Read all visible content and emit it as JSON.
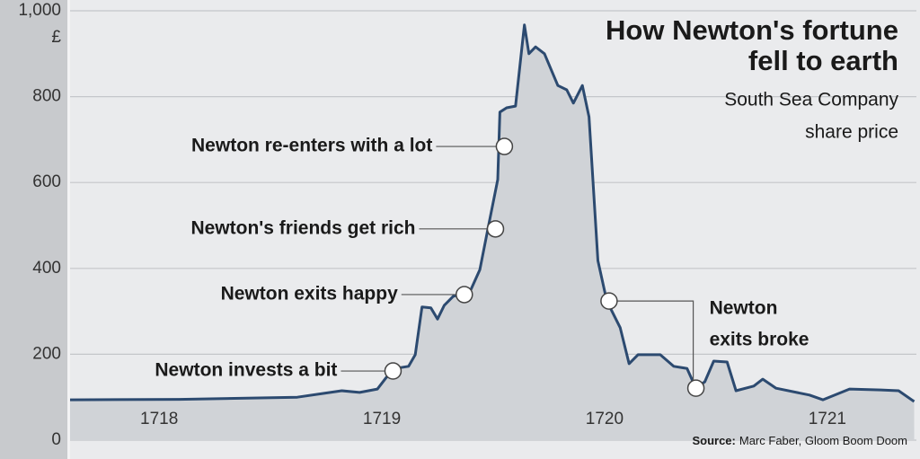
{
  "chart_data": {
    "type": "area",
    "title": [
      "How Newton's fortune",
      "fell to earth"
    ],
    "subtitle": [
      "South Sea Company",
      "share price"
    ],
    "y_unit": "£",
    "source_label": "Source:",
    "source": "Marc Faber, Gloom Boom Doom",
    "x": [
      1717.6,
      1718.09,
      1718.62,
      1718.74,
      1718.82,
      1718.9,
      1718.98,
      1719.02,
      1719.06,
      1719.12,
      1719.15,
      1719.18,
      1719.22,
      1719.25,
      1719.28,
      1719.32,
      1719.36,
      1719.4,
      1719.44,
      1719.48,
      1719.52,
      1719.53,
      1719.56,
      1719.6,
      1719.63,
      1719.64,
      1719.66,
      1719.69,
      1719.73,
      1719.79,
      1719.83,
      1719.86,
      1719.9,
      1719.93,
      1719.97,
      1720.01,
      1720.07,
      1720.11,
      1720.15,
      1720.25,
      1720.31,
      1720.37,
      1720.41,
      1720.45,
      1720.49,
      1720.55,
      1720.59,
      1720.67,
      1720.71,
      1720.77,
      1720.92,
      1720.98,
      1721.1,
      1721.24,
      1721.32,
      1721.39
    ],
    "values": [
      94,
      95,
      100,
      109,
      115,
      111,
      119,
      146,
      167,
      172,
      199,
      310,
      308,
      282,
      314,
      335,
      341,
      351,
      397,
      502,
      607,
      764,
      774,
      778,
      920,
      967,
      900,
      916,
      900,
      826,
      816,
      785,
      826,
      753,
      418,
      324,
      262,
      178,
      199,
      199,
      172,
      167,
      121,
      136,
      184,
      182,
      115,
      126,
      142,
      121,
      105,
      94,
      119,
      117,
      115,
      90
    ],
    "color": "#2c4a70",
    "fill": "#d0d3d7",
    "xlim": [
      1717.6,
      1721.4
    ],
    "ylim": [
      0,
      1000
    ],
    "xticks": [
      1718,
      1719,
      1720,
      1721
    ],
    "yticks": [
      0,
      200,
      400,
      600,
      800,
      {
        "value": 1000,
        "label": "1,000"
      }
    ],
    "grid": true,
    "annotations": [
      {
        "text": [
          "Newton invests a bit"
        ],
        "points": [
          {
            "x": 1719.05,
            "y": 161
          }
        ]
      },
      {
        "text": [
          "Newton exits happy"
        ],
        "points": [
          {
            "x": 1719.37,
            "y": 339
          }
        ]
      },
      {
        "text": [
          "Newton's friends get rich"
        ],
        "points": [
          {
            "x": 1719.51,
            "y": 492
          }
        ]
      },
      {
        "text": [
          "Newton re-enters with a lot"
        ],
        "points": [
          {
            "x": 1719.55,
            "y": 684
          }
        ]
      },
      {
        "text": [
          "Newton",
          "exits broke"
        ],
        "points": [
          {
            "x": 1720.02,
            "y": 324
          },
          {
            "x": 1720.41,
            "y": 121
          }
        ]
      }
    ]
  }
}
